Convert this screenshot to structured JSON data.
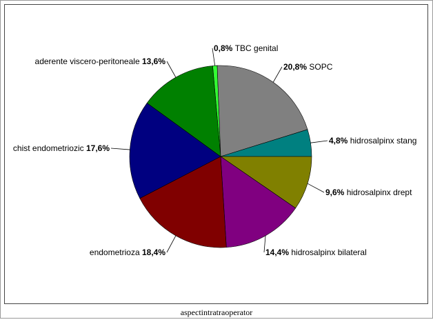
{
  "chart_data": {
    "type": "pie",
    "caption": "aspectintratraoperator",
    "categories": [
      "TBC genital",
      "SOPC",
      "hidrosalpinx stang",
      "hidrosalpinx drept",
      "hidrosalpinx bilateral",
      "endometrioza",
      "chist endometriozic",
      "aderente viscero-peritoneale"
    ],
    "values": [
      0.8,
      20.8,
      4.8,
      9.6,
      14.4,
      18.4,
      17.6,
      13.6
    ],
    "value_labels": [
      "0,8%",
      "20,8%",
      "4,8%",
      "9,6%",
      "14,4%",
      "18,4%",
      "17,6%",
      "13,6%"
    ],
    "colors": [
      "#33ff33",
      "#808080",
      "#008080",
      "#808000",
      "#800080",
      "#800000",
      "#000080",
      "#008000"
    ]
  }
}
